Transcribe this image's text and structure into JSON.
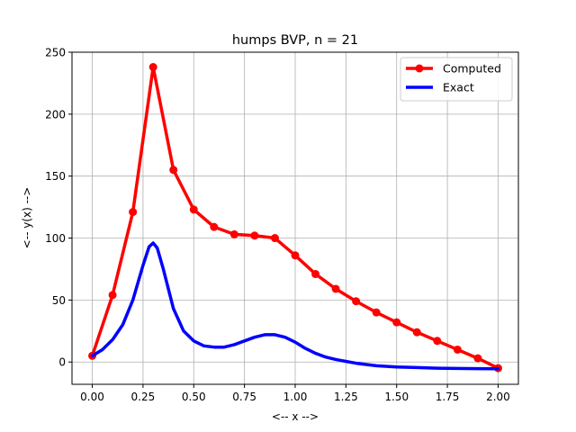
{
  "chart_data": {
    "type": "line",
    "title": "humps BVP, n = 21",
    "xlabel": "<-- x -->",
    "ylabel": "<-- y(x) -->",
    "xlim": [
      -0.1,
      2.1
    ],
    "ylim": [
      -18,
      250
    ],
    "xticks": [
      "0.00",
      "0.25",
      "0.50",
      "0.75",
      "1.00",
      "1.25",
      "1.50",
      "1.75",
      "2.00"
    ],
    "yticks": [
      "0",
      "50",
      "100",
      "150",
      "200",
      "250"
    ],
    "grid": true,
    "legend_position": "top-right",
    "series": [
      {
        "name": "Computed",
        "color": "#ff0000",
        "marker": "circle",
        "x": [
          0.0,
          0.1,
          0.2,
          0.3,
          0.4,
          0.5,
          0.6,
          0.7,
          0.8,
          0.9,
          1.0,
          1.1,
          1.2,
          1.3,
          1.4,
          1.5,
          1.6,
          1.7,
          1.8,
          1.9,
          2.0
        ],
        "y": [
          5,
          54,
          121,
          238,
          155,
          123,
          109,
          103,
          102,
          100,
          86,
          71,
          59,
          49,
          40,
          32,
          24,
          17,
          10,
          3,
          -5
        ]
      },
      {
        "name": "Exact",
        "color": "#0000ff",
        "marker": "none",
        "x": [
          0.0,
          0.05,
          0.1,
          0.15,
          0.2,
          0.25,
          0.28,
          0.3,
          0.32,
          0.35,
          0.4,
          0.45,
          0.5,
          0.55,
          0.6,
          0.65,
          0.7,
          0.75,
          0.8,
          0.85,
          0.9,
          0.95,
          1.0,
          1.05,
          1.1,
          1.15,
          1.2,
          1.3,
          1.4,
          1.5,
          1.6,
          1.7,
          1.8,
          1.9,
          2.0
        ],
        "y": [
          5,
          10,
          18,
          30,
          50,
          78,
          93,
          96,
          92,
          75,
          43,
          25,
          17,
          13,
          12,
          12,
          14,
          17,
          20,
          22,
          22,
          20,
          16,
          11,
          7,
          4,
          2,
          -1,
          -3,
          -4,
          -4.5,
          -5,
          -5.2,
          -5.4,
          -5.5
        ]
      }
    ]
  }
}
